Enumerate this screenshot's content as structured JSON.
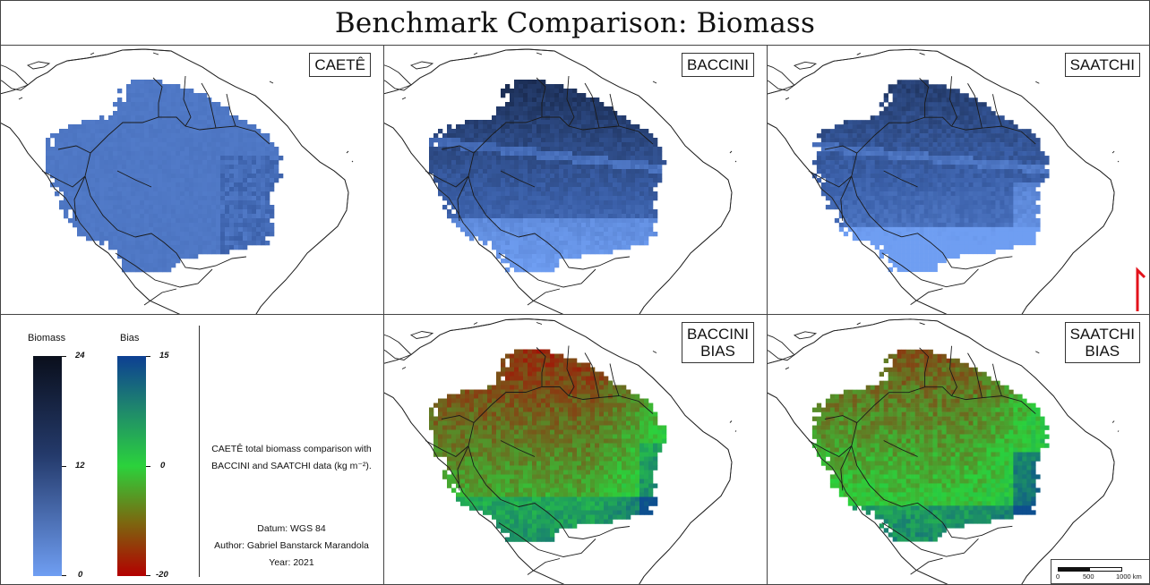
{
  "title": "Benchmark Comparison: Biomass",
  "panels": {
    "caete": {
      "label": "CAETÊ"
    },
    "baccini": {
      "label": "BACCINI"
    },
    "saatchi": {
      "label": "SAATCHI"
    },
    "baccini_bias": {
      "label": "BACCINI\nBIAS"
    },
    "saatchi_bias": {
      "label": "SAATCHI\nBIAS"
    }
  },
  "legend": {
    "biomass": {
      "title": "Biomass",
      "max": "24",
      "mid": "12",
      "min": "0",
      "color_top": "#0a0f1c",
      "color_bottom": "#6f9ef2"
    },
    "bias": {
      "title": "Bias",
      "max": "15",
      "mid": "0",
      "min": "-20",
      "color_top": "#0d3f93",
      "color_mid": "#2bd23c",
      "color_bottom": "#b30000"
    }
  },
  "description": {
    "line1": "CAETÊ total biomass comparison with",
    "line2": "BACCINI and SAATCHI data (kg m⁻²)."
  },
  "credits": {
    "datum": "Datum: WGS 84",
    "author": "Author: Gabriel Banstarck Marandola",
    "year": "Year: 2021"
  },
  "scale_bar": {
    "t0": "0",
    "t1": "500",
    "t2": "1000 km"
  },
  "colors": {
    "north_arrow": "#e3121b",
    "frame": "#444444"
  }
}
